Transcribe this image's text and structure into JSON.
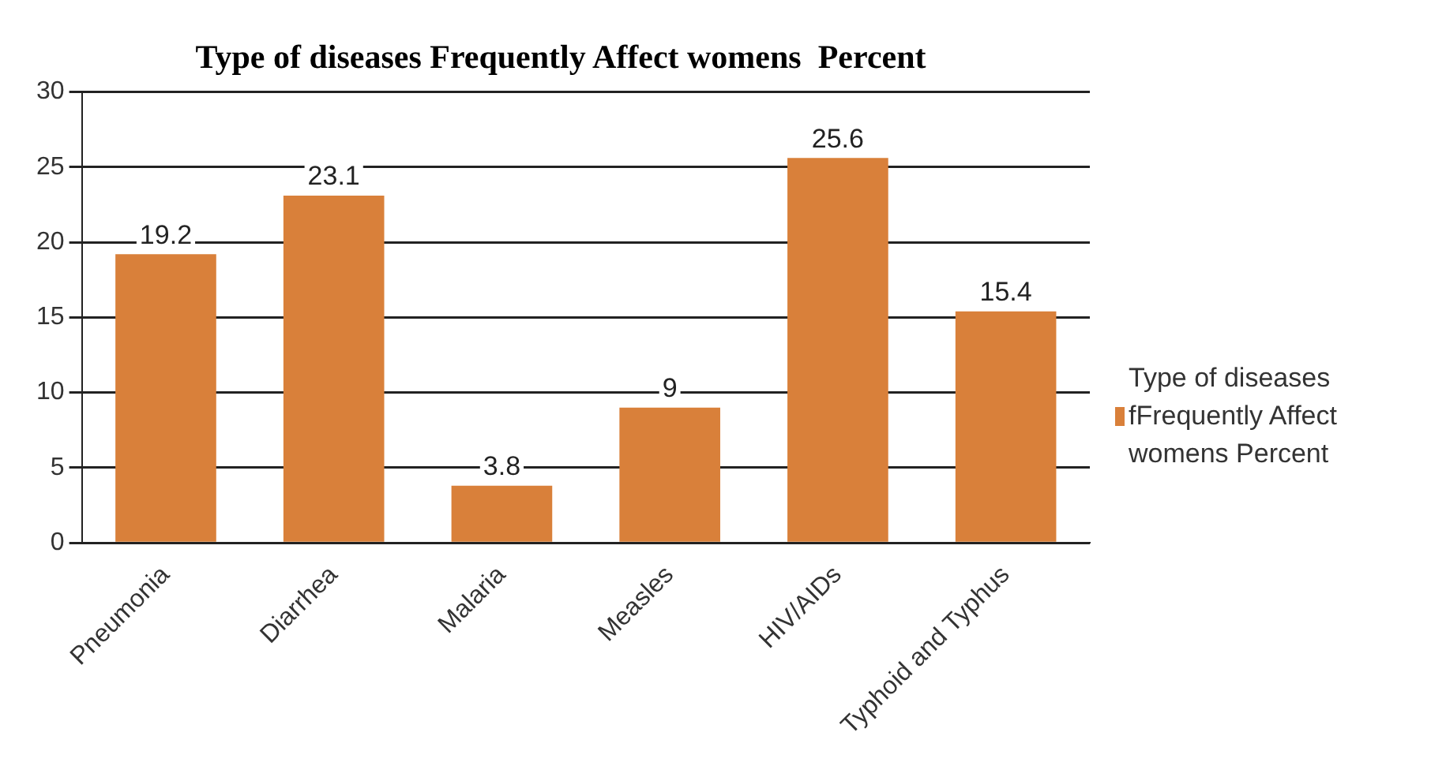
{
  "chart_data": {
    "type": "bar",
    "title": "Type of diseases Frequently Affect womens  Percent",
    "categories": [
      "Pneumonia",
      "Diarrhea",
      "Malaria",
      "Measles",
      "HIV/AIDs",
      "Typhoid and Typhus"
    ],
    "series": [
      {
        "name": "Type of diseases fFrequently Affect womens  Percent",
        "color": "#d9803a",
        "values": [
          19.2,
          23.1,
          3.8,
          9,
          25.6,
          15.4
        ]
      }
    ],
    "ylim": [
      0,
      30
    ],
    "yticks": [
      0,
      5,
      10,
      15,
      20,
      25,
      30
    ],
    "grid": "y",
    "legend": "right",
    "data_labels": true
  }
}
